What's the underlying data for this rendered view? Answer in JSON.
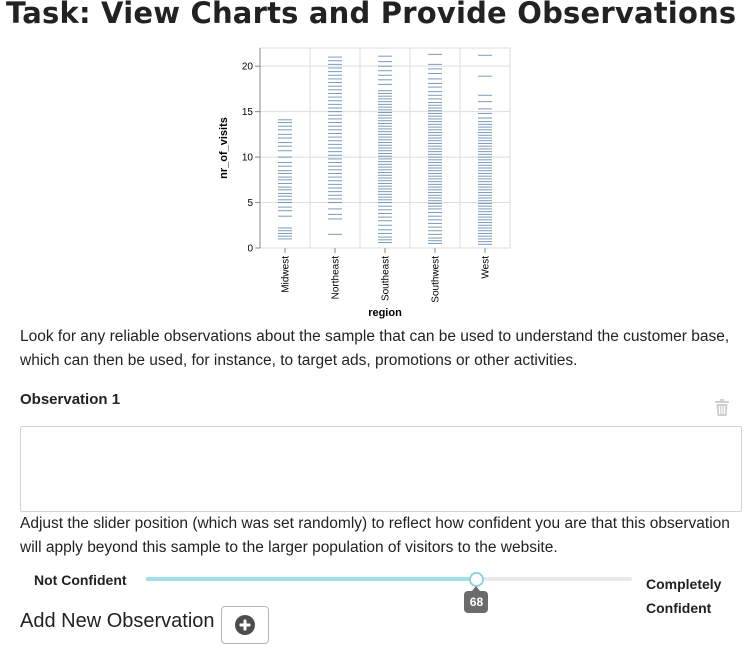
{
  "page": {
    "title": "Task: View Charts and Provide Observations",
    "instructions": "Look for any reliable observations about the sample that can be used to understand the customer base, which can then be used, for instance, to target ads, promotions or other activities."
  },
  "observation": {
    "label": "Observation 1",
    "value": "",
    "placeholder": "",
    "delete_icon": "trash-icon"
  },
  "slider": {
    "instructions": "Adjust the slider position (which was set randomly) to reflect how confident you are that this observation will apply beyond this sample to the larger population of visitors to the website.",
    "left_label": "Not Confident",
    "right_label": "Completely Confident",
    "value": 68,
    "min": 0,
    "max": 100,
    "track_color": "#9fdfe8",
    "rail_color": "#e9e9e9"
  },
  "add_observation": {
    "label": "Add New Observation",
    "icon": "plus-circle-icon"
  },
  "chart_data": {
    "type": "scatter",
    "mark": "tick",
    "title": "",
    "xlabel": "region",
    "ylabel": "nr_of_visits",
    "categories": [
      "Midwest",
      "Northeast",
      "Southeast",
      "Southwest",
      "West"
    ],
    "yticks": [
      0,
      5,
      10,
      15,
      20
    ],
    "ylim": [
      0,
      22
    ],
    "grid": true,
    "color": "#4c78a8",
    "series": [
      {
        "values": [
          1.0,
          1.3,
          1.6,
          1.9,
          2.2,
          3.5,
          4.1,
          4.5,
          5.0,
          5.3,
          5.7,
          6.0,
          6.4,
          6.7,
          7.1,
          7.5,
          7.8,
          8.2,
          8.5,
          9.0,
          9.4,
          10.0,
          10.7,
          11.2,
          11.6,
          12.1,
          12.5,
          13.0,
          13.4,
          13.8,
          14.1
        ]
      },
      {
        "values": [
          1.5,
          3.2,
          3.7,
          4.3,
          5.0,
          5.4,
          5.8,
          6.2,
          6.6,
          7.0,
          7.4,
          7.8,
          8.2,
          8.6,
          9.0,
          9.4,
          9.8,
          10.2,
          10.6,
          11.0,
          11.4,
          11.8,
          12.2,
          12.6,
          13.0,
          13.4,
          13.8,
          14.2,
          14.6,
          15.0,
          15.4,
          15.8,
          16.2,
          16.6,
          17.0,
          17.4,
          17.8,
          18.2,
          18.6,
          19.0,
          19.4,
          19.8,
          20.2,
          20.6,
          21.0
        ]
      },
      {
        "values": [
          0.6,
          0.9,
          1.2,
          1.6,
          2.0,
          2.5,
          3.0,
          3.4,
          3.8,
          4.2,
          4.6,
          5.0,
          5.3,
          5.6,
          5.9,
          6.2,
          6.5,
          6.8,
          7.1,
          7.4,
          7.7,
          8.0,
          8.3,
          8.6,
          8.9,
          9.2,
          9.5,
          9.8,
          10.1,
          10.4,
          10.7,
          11.0,
          11.3,
          11.6,
          11.9,
          12.2,
          12.5,
          12.8,
          13.1,
          13.4,
          13.7,
          14.0,
          14.3,
          14.6,
          14.9,
          15.2,
          15.5,
          15.8,
          16.1,
          16.4,
          16.7,
          17.0,
          17.3,
          18.0,
          18.5,
          19.0,
          19.5,
          20.0,
          20.5,
          21.1
        ]
      },
      {
        "values": [
          0.5,
          0.8,
          1.1,
          1.5,
          1.9,
          2.3,
          2.7,
          3.1,
          3.5,
          3.9,
          4.3,
          4.6,
          4.9,
          5.2,
          5.5,
          5.8,
          6.1,
          6.4,
          6.7,
          7.0,
          7.3,
          7.6,
          7.9,
          8.2,
          8.5,
          8.8,
          9.1,
          9.4,
          9.7,
          10.0,
          10.3,
          10.6,
          10.9,
          11.2,
          11.5,
          11.8,
          12.1,
          12.4,
          12.7,
          13.0,
          13.3,
          13.6,
          13.9,
          14.2,
          14.5,
          14.8,
          15.1,
          15.4,
          15.7,
          16.0,
          16.4,
          16.8,
          17.2,
          17.7,
          18.1,
          18.6,
          19.2,
          19.7,
          20.2,
          21.3
        ]
      },
      {
        "values": [
          0.4,
          0.7,
          1.0,
          1.3,
          1.6,
          1.9,
          2.2,
          2.5,
          2.8,
          3.1,
          3.4,
          3.7,
          4.0,
          4.3,
          4.6,
          4.9,
          5.2,
          5.5,
          5.8,
          6.1,
          6.4,
          6.7,
          7.0,
          7.3,
          7.6,
          7.9,
          8.2,
          8.5,
          8.8,
          9.1,
          9.4,
          9.7,
          10.0,
          10.3,
          10.6,
          10.9,
          11.2,
          11.5,
          11.8,
          12.1,
          12.4,
          12.7,
          13.0,
          13.3,
          13.6,
          13.9,
          14.3,
          14.8,
          15.3,
          16.1,
          16.8,
          18.9,
          21.2
        ]
      }
    ]
  }
}
